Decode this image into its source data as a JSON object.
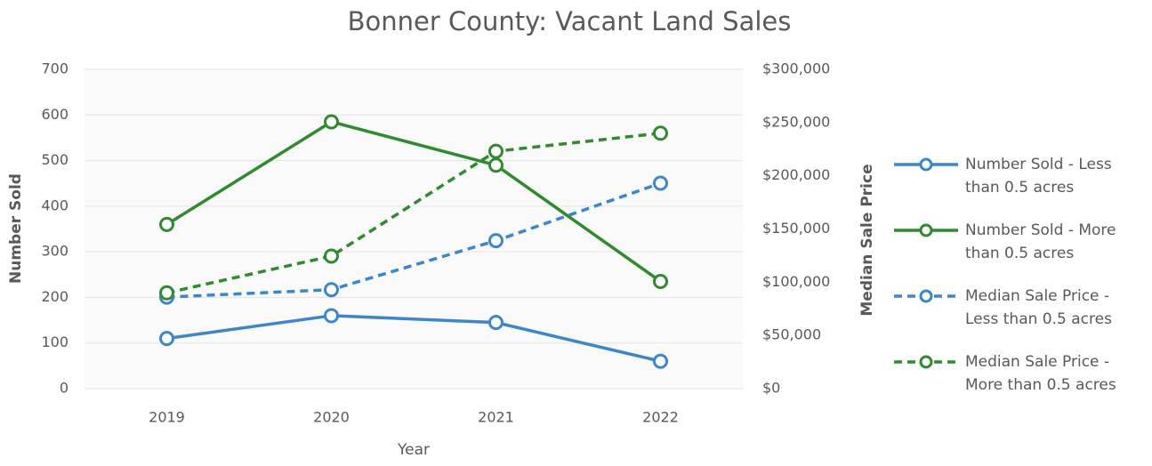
{
  "chart_data": {
    "type": "line",
    "title": "Bonner County: Vacant Land Sales",
    "x_label": "Year",
    "y_label": "Number Sold",
    "y2_label": "Median Sale Price",
    "categories": [
      "2019",
      "2020",
      "2021",
      "2022"
    ],
    "ylim": [
      0,
      700
    ],
    "yticks": [
      0,
      100,
      200,
      300,
      400,
      500,
      600,
      700
    ],
    "y2lim": [
      0,
      300000
    ],
    "y2ticks": [
      {
        "value": 0,
        "label": "$0"
      },
      {
        "value": 50000,
        "label": "$50,000"
      },
      {
        "value": 100000,
        "label": "$100,000"
      },
      {
        "value": 150000,
        "label": "$150,000"
      },
      {
        "value": 200000,
        "label": "$200,000"
      },
      {
        "value": 250000,
        "label": "$250,000"
      },
      {
        "value": 300000,
        "label": "$300,000"
      }
    ],
    "grid": true,
    "legend": "right",
    "series": [
      {
        "name": "Number Sold - Less than 0.5 acres",
        "color": "#3a87d0",
        "dashed": false,
        "values": [
          110,
          160,
          145,
          60
        ]
      },
      {
        "name": "Number Sold - More than 0.5 acres",
        "color": "#2e8b2e",
        "dashed": false,
        "values": [
          360,
          585,
          490,
          235
        ]
      },
      {
        "name": "Median Sale Price - Less than 0.5 acres",
        "color": "#3a87d0",
        "dashed": true,
        "axis": "y2",
        "values": [
          86000,
          93000,
          139000,
          193000
        ]
      },
      {
        "name": "Median Sale Price - More than 0.5 acres",
        "color": "#2e8b2e",
        "dashed": true,
        "axis": "y2",
        "values": [
          90000,
          124500,
          223000,
          240000
        ]
      }
    ]
  }
}
